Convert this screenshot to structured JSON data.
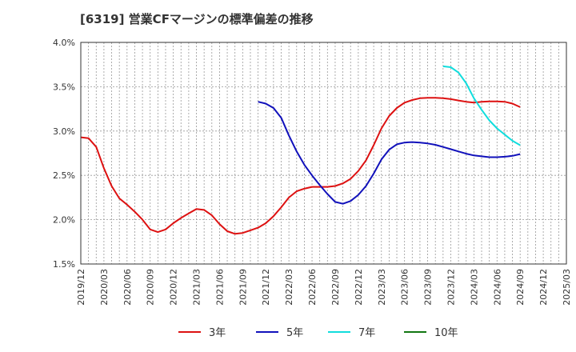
{
  "chart_data": {
    "type": "line",
    "title": "[6319]  営業CFマージンの標準偏差の推移",
    "xlabel": "",
    "ylabel": "",
    "ylim": [
      1.5,
      4.0
    ],
    "yticks": [
      "1.5%",
      "2.0%",
      "2.5%",
      "3.0%",
      "3.5%",
      "4.0%"
    ],
    "xticks": [
      "2019/12",
      "2020/03",
      "2020/06",
      "2020/09",
      "2020/12",
      "2021/03",
      "2021/06",
      "2021/09",
      "2021/12",
      "2022/03",
      "2022/06",
      "2022/09",
      "2022/12",
      "2023/03",
      "2023/06",
      "2023/09",
      "2023/12",
      "2024/03",
      "2024/06",
      "2024/09",
      "2024/12",
      "2025/03"
    ],
    "grid": true,
    "legend_position": "bottom",
    "series": [
      {
        "name": "3年",
        "color": "#dd1111",
        "x": [
          "2019/12",
          "2020/01",
          "2020/02",
          "2020/03",
          "2020/04",
          "2020/05",
          "2020/06",
          "2020/07",
          "2020/08",
          "2020/09",
          "2020/10",
          "2020/11",
          "2020/12",
          "2021/01",
          "2021/02",
          "2021/03",
          "2021/04",
          "2021/05",
          "2021/06",
          "2021/07",
          "2021/08",
          "2021/09",
          "2021/10",
          "2021/11",
          "2021/12",
          "2022/01",
          "2022/02",
          "2022/03",
          "2022/04",
          "2022/05",
          "2022/06",
          "2022/07",
          "2022/08",
          "2022/09",
          "2022/10",
          "2022/11",
          "2022/12",
          "2023/01",
          "2023/02",
          "2023/03",
          "2023/04",
          "2023/05",
          "2023/06",
          "2023/07",
          "2023/08",
          "2023/09",
          "2023/10",
          "2023/11",
          "2023/12",
          "2024/01",
          "2024/02",
          "2024/03",
          "2024/04",
          "2024/05",
          "2024/06",
          "2024/07",
          "2024/08",
          "2024/09"
        ],
        "values": [
          2.93,
          2.92,
          2.82,
          2.58,
          2.38,
          2.24,
          2.17,
          2.09,
          2.0,
          1.89,
          1.86,
          1.89,
          1.96,
          2.02,
          2.07,
          2.12,
          2.11,
          2.05,
          1.95,
          1.87,
          1.84,
          1.85,
          1.88,
          1.91,
          1.96,
          2.04,
          2.14,
          2.25,
          2.32,
          2.35,
          2.37,
          2.37,
          2.37,
          2.38,
          2.41,
          2.46,
          2.55,
          2.67,
          2.84,
          3.03,
          3.17,
          3.26,
          3.32,
          3.35,
          3.37,
          3.375,
          3.375,
          3.37,
          3.36,
          3.345,
          3.33,
          3.32,
          3.33,
          3.335,
          3.335,
          3.33,
          3.31,
          3.27
        ]
      },
      {
        "name": "5年",
        "color": "#1111bb",
        "x": [
          "2021/11",
          "2021/12",
          "2022/01",
          "2022/02",
          "2022/03",
          "2022/04",
          "2022/05",
          "2022/06",
          "2022/07",
          "2022/08",
          "2022/09",
          "2022/10",
          "2022/11",
          "2022/12",
          "2023/01",
          "2023/02",
          "2023/03",
          "2023/04",
          "2023/05",
          "2023/06",
          "2023/07",
          "2023/08",
          "2023/09",
          "2023/10",
          "2023/11",
          "2023/12",
          "2024/01",
          "2024/02",
          "2024/03",
          "2024/04",
          "2024/05",
          "2024/06",
          "2024/07",
          "2024/08",
          "2024/09"
        ],
        "values": [
          3.33,
          3.31,
          3.26,
          3.15,
          2.95,
          2.77,
          2.62,
          2.5,
          2.39,
          2.29,
          2.2,
          2.18,
          2.21,
          2.28,
          2.38,
          2.52,
          2.68,
          2.79,
          2.85,
          2.87,
          2.875,
          2.87,
          2.86,
          2.845,
          2.82,
          2.795,
          2.77,
          2.745,
          2.725,
          2.715,
          2.705,
          2.705,
          2.71,
          2.72,
          2.74
        ]
      },
      {
        "name": "7年",
        "color": "#11dddd",
        "x": [
          "2023/11",
          "2023/12",
          "2024/01",
          "2024/02",
          "2024/03",
          "2024/04",
          "2024/05",
          "2024/06",
          "2024/07",
          "2024/08",
          "2024/09"
        ],
        "values": [
          3.73,
          3.72,
          3.66,
          3.54,
          3.37,
          3.24,
          3.12,
          3.03,
          2.96,
          2.89,
          2.84
        ]
      },
      {
        "name": "10年",
        "color": "#117711",
        "x": [],
        "values": []
      }
    ]
  }
}
